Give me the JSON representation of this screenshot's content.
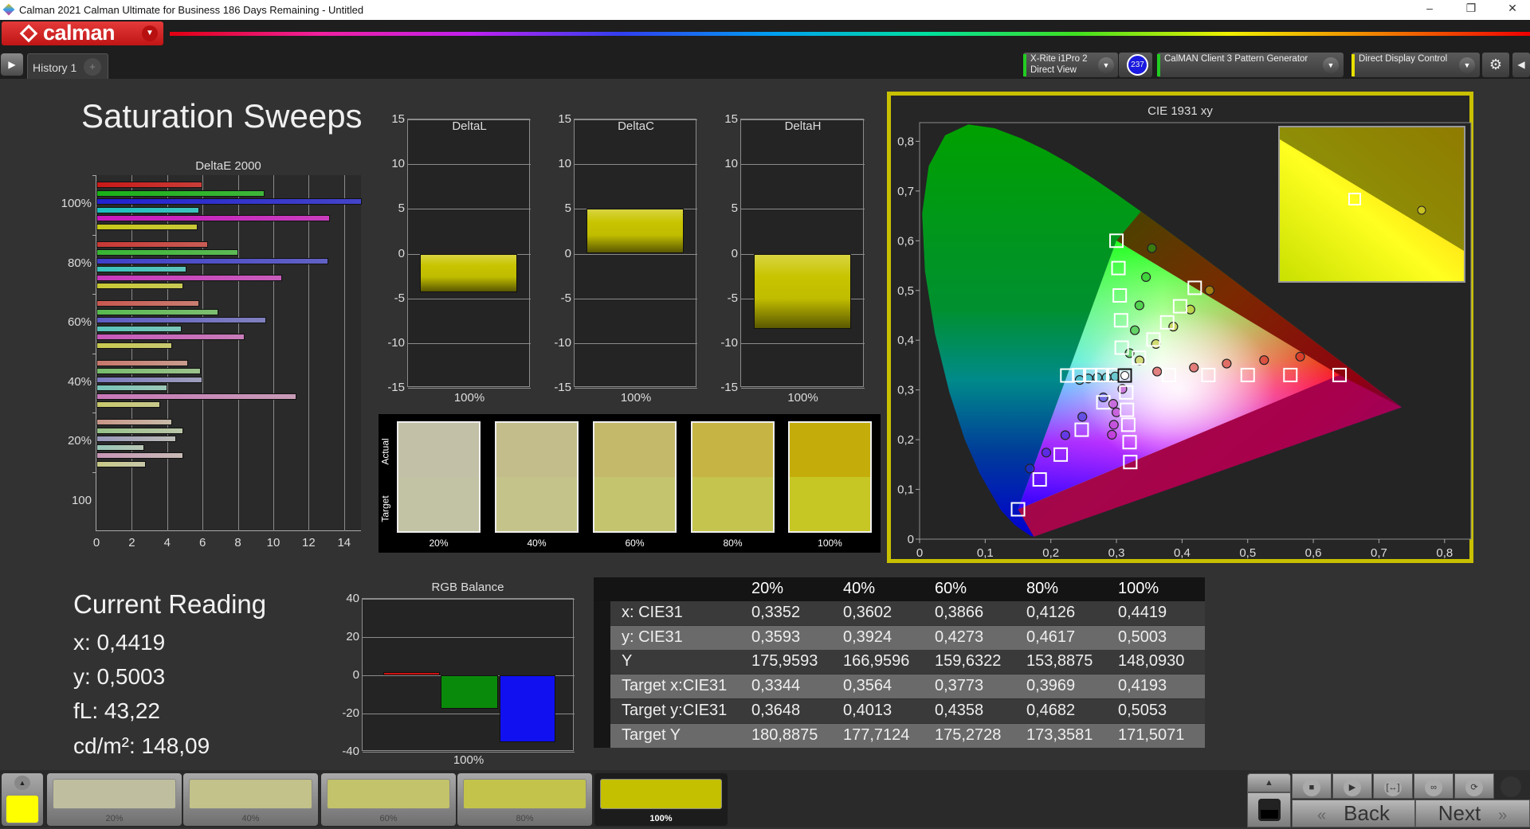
{
  "window": {
    "title": "Calman 2021 Calman Ultimate for Business 186 Days Remaining  - Untitled",
    "minimize": "–",
    "restore": "❐",
    "close": "✕"
  },
  "app": {
    "logo_text": "calman"
  },
  "tabs": [
    {
      "label": "History 1"
    }
  ],
  "devices": {
    "meter": {
      "line1": "X-Rite i1Pro 2",
      "line2": "Direct View",
      "badge": "237",
      "status_color": "#22cc22"
    },
    "source": {
      "label": "CalMAN Client 3 Pattern Generator",
      "status_color": "#22cc22"
    },
    "display": {
      "label": "Direct Display Control",
      "status_color": "#e8e000"
    }
  },
  "page": {
    "title": "Saturation Sweeps"
  },
  "current_reading": {
    "title": "Current Reading",
    "x": "x: 0,4419",
    "y": "y: 0,5003",
    "fl": "fL: 43,22",
    "cdm2": "cd/m²: 148,09"
  },
  "swatches": {
    "actual_label": "Actual",
    "target_label": "Target",
    "items": [
      {
        "label": "20%",
        "actual": "#c2c0a7",
        "target": "#c2c2a5"
      },
      {
        "label": "40%",
        "actual": "#c3bd8b",
        "target": "#c4c48a"
      },
      {
        "label": "60%",
        "actual": "#c4b86b",
        "target": "#c4c46e"
      },
      {
        "label": "80%",
        "actual": "#c6b545",
        "target": "#c4c44e"
      },
      {
        "label": "100%",
        "actual": "#c4ad0a",
        "target": "#c6c624"
      }
    ]
  },
  "table": {
    "columns": [
      "20%",
      "40%",
      "60%",
      "80%",
      "100%"
    ],
    "rows": [
      {
        "label": "x: CIE31",
        "values": [
          "0,3352",
          "0,3602",
          "0,3866",
          "0,4126",
          "0,4419"
        ]
      },
      {
        "label": "y: CIE31",
        "values": [
          "0,3593",
          "0,3924",
          "0,4273",
          "0,4617",
          "0,5003"
        ]
      },
      {
        "label": "Y",
        "values": [
          "175,9593",
          "166,9596",
          "159,6322",
          "153,8875",
          "148,0930"
        ]
      },
      {
        "label": "Target x:CIE31",
        "values": [
          "0,3344",
          "0,3564",
          "0,3773",
          "0,3969",
          "0,4193"
        ]
      },
      {
        "label": "Target y:CIE31",
        "values": [
          "0,3648",
          "0,4013",
          "0,4358",
          "0,4682",
          "0,5053"
        ]
      },
      {
        "label": "Target Y",
        "values": [
          "180,8875",
          "177,7124",
          "175,2728",
          "173,3581",
          "171,5071"
        ]
      }
    ]
  },
  "bottom": {
    "current_color": "#ffff00",
    "selected_index": 4,
    "steps": [
      {
        "label": "20%",
        "color": "#bfbf9f"
      },
      {
        "label": "40%",
        "color": "#c2c28a"
      },
      {
        "label": "60%",
        "color": "#c3c36b"
      },
      {
        "label": "80%",
        "color": "#c3c34c"
      },
      {
        "label": "100%",
        "color": "#c4c000"
      }
    ],
    "back_label": "Back",
    "next_label": "Next"
  },
  "chart_data": [
    {
      "type": "bar",
      "orientation": "horizontal",
      "title": "DeltaE 2000",
      "categories": [
        "100%",
        "80%",
        "60%",
        "40%",
        "20%",
        "100"
      ],
      "xlim": [
        0,
        15
      ],
      "xticks": [
        "0",
        "2",
        "4",
        "6",
        "8",
        "10",
        "12",
        "14"
      ],
      "grid": true,
      "series": [
        {
          "color": "#c81010",
          "values": [
            6.0,
            6.3,
            5.8,
            5.2,
            4.3,
            null
          ]
        },
        {
          "color": "#10b010",
          "values": [
            9.5,
            8.0,
            6.9,
            5.9,
            4.9,
            null
          ]
        },
        {
          "color": "#1818d0",
          "values": [
            15.0,
            13.1,
            9.6,
            6.0,
            4.5,
            null
          ]
        },
        {
          "color": "#10c0c0",
          "values": [
            5.8,
            5.1,
            4.8,
            4.0,
            2.7,
            null
          ]
        },
        {
          "color": "#c810c0",
          "values": [
            13.2,
            10.5,
            8.4,
            11.3,
            4.9,
            null
          ]
        },
        {
          "color": "#c8c810",
          "values": [
            5.7,
            4.9,
            4.3,
            3.6,
            2.8,
            null
          ]
        }
      ]
    },
    {
      "type": "bar",
      "title": "DeltaL",
      "categories": [
        "100%"
      ],
      "values": [
        -4.3
      ],
      "ylim": [
        -15,
        15
      ],
      "yticks": [
        "15",
        "10",
        "5",
        "0",
        "-5",
        "-10",
        "-15"
      ],
      "color": "#c8c400"
    },
    {
      "type": "bar",
      "title": "DeltaC",
      "categories": [
        "100%"
      ],
      "values": [
        5.0
      ],
      "ylim": [
        -15,
        15
      ],
      "yticks": [
        "15",
        "10",
        "5",
        "0",
        "-5",
        "-10",
        "-15"
      ],
      "color": "#c8c400"
    },
    {
      "type": "bar",
      "title": "DeltaH",
      "categories": [
        "100%"
      ],
      "values": [
        -8.4
      ],
      "ylim": [
        -15,
        15
      ],
      "yticks": [
        "15",
        "10",
        "5",
        "0",
        "-5",
        "-10",
        "-15"
      ],
      "color": "#c8c400"
    },
    {
      "type": "bar",
      "title": "RGB Balance",
      "categories": [
        "100%"
      ],
      "ylim": [
        -40,
        40
      ],
      "yticks": [
        "40",
        "20",
        "0",
        "-20",
        "-40"
      ],
      "series": [
        {
          "color": "#d01010",
          "values": [
            1.5
          ]
        },
        {
          "color": "#0a8a0a",
          "values": [
            -17.5
          ]
        },
        {
          "color": "#1010f0",
          "values": [
            -35.0
          ]
        }
      ]
    },
    {
      "type": "scatter",
      "title": "CIE 1931 xy",
      "xlim": [
        0,
        0.84
      ],
      "ylim": [
        0,
        0.837
      ],
      "xticks": [
        "0",
        "0,1",
        "0,2",
        "0,3",
        "0,4",
        "0,5",
        "0,6",
        "0,7",
        "0,8"
      ],
      "yticks": [
        "0",
        "0,1",
        "0,2",
        "0,3",
        "0,4",
        "0,5",
        "0,6",
        "0,7",
        "0,8"
      ],
      "gamut": [
        [
          0.64,
          0.33
        ],
        [
          0.3,
          0.6
        ],
        [
          0.15,
          0.06
        ]
      ],
      "white": {
        "target": [
          0.3127,
          0.329
        ],
        "measured": [
          0.3127,
          0.329
        ]
      },
      "series": [
        {
          "color": "#d02020",
          "targets": [
            [
              0.38,
              0.33
            ],
            [
              0.44,
              0.33
            ],
            [
              0.5,
              0.33
            ],
            [
              0.565,
              0.33
            ],
            [
              0.64,
              0.33
            ]
          ],
          "measured": [
            [
              0.362,
              0.337
            ],
            [
              0.418,
              0.345
            ],
            [
              0.468,
              0.353
            ],
            [
              0.525,
              0.36
            ],
            [
              0.58,
              0.367
            ]
          ]
        },
        {
          "color": "#20b020",
          "targets": [
            [
              0.308,
              0.385
            ],
            [
              0.307,
              0.44
            ],
            [
              0.305,
              0.49
            ],
            [
              0.303,
              0.545
            ],
            [
              0.3,
              0.6
            ]
          ],
          "measured": [
            [
              0.32,
              0.374
            ],
            [
              0.328,
              0.42
            ],
            [
              0.335,
              0.47
            ],
            [
              0.345,
              0.527
            ],
            [
              0.354,
              0.585
            ]
          ]
        },
        {
          "color": "#3030d0",
          "targets": [
            [
              0.28,
              0.275
            ],
            [
              0.247,
              0.22
            ],
            [
              0.215,
              0.17
            ],
            [
              0.183,
              0.12
            ],
            [
              0.15,
              0.06
            ]
          ],
          "measured": [
            [
              0.28,
              0.285
            ],
            [
              0.248,
              0.246
            ],
            [
              0.222,
              0.209
            ],
            [
              0.193,
              0.174
            ],
            [
              0.168,
              0.142
            ]
          ]
        },
        {
          "color": "#20b0b0",
          "targets": [
            [
              0.295,
              0.33
            ],
            [
              0.278,
              0.33
            ],
            [
              0.26,
              0.33
            ],
            [
              0.243,
              0.33
            ],
            [
              0.225,
              0.329
            ]
          ],
          "measured": [
            [
              0.298,
              0.327
            ],
            [
              0.285,
              0.325
            ],
            [
              0.271,
              0.325
            ],
            [
              0.257,
              0.323
            ],
            [
              0.244,
              0.32
            ]
          ]
        },
        {
          "color": "#c030c0",
          "targets": [
            [
              0.315,
              0.295
            ],
            [
              0.316,
              0.26
            ],
            [
              0.318,
              0.23
            ],
            [
              0.32,
              0.195
            ],
            [
              0.321,
              0.155
            ]
          ],
          "measured": [
            [
              0.309,
              0.302
            ],
            [
              0.295,
              0.272
            ],
            [
              0.3,
              0.255
            ],
            [
              0.296,
              0.23
            ],
            [
              0.293,
              0.21
            ]
          ]
        },
        {
          "color": "#c8c020",
          "targets": [
            [
              0.3344,
              0.3648
            ],
            [
              0.3564,
              0.4013
            ],
            [
              0.3773,
              0.4358
            ],
            [
              0.3969,
              0.4682
            ],
            [
              0.4193,
              0.5053
            ]
          ],
          "measured": [
            [
              0.3352,
              0.3593
            ],
            [
              0.3602,
              0.3924
            ],
            [
              0.3866,
              0.4273
            ],
            [
              0.4126,
              0.4617
            ],
            [
              0.4419,
              0.5003
            ]
          ]
        }
      ]
    }
  ]
}
